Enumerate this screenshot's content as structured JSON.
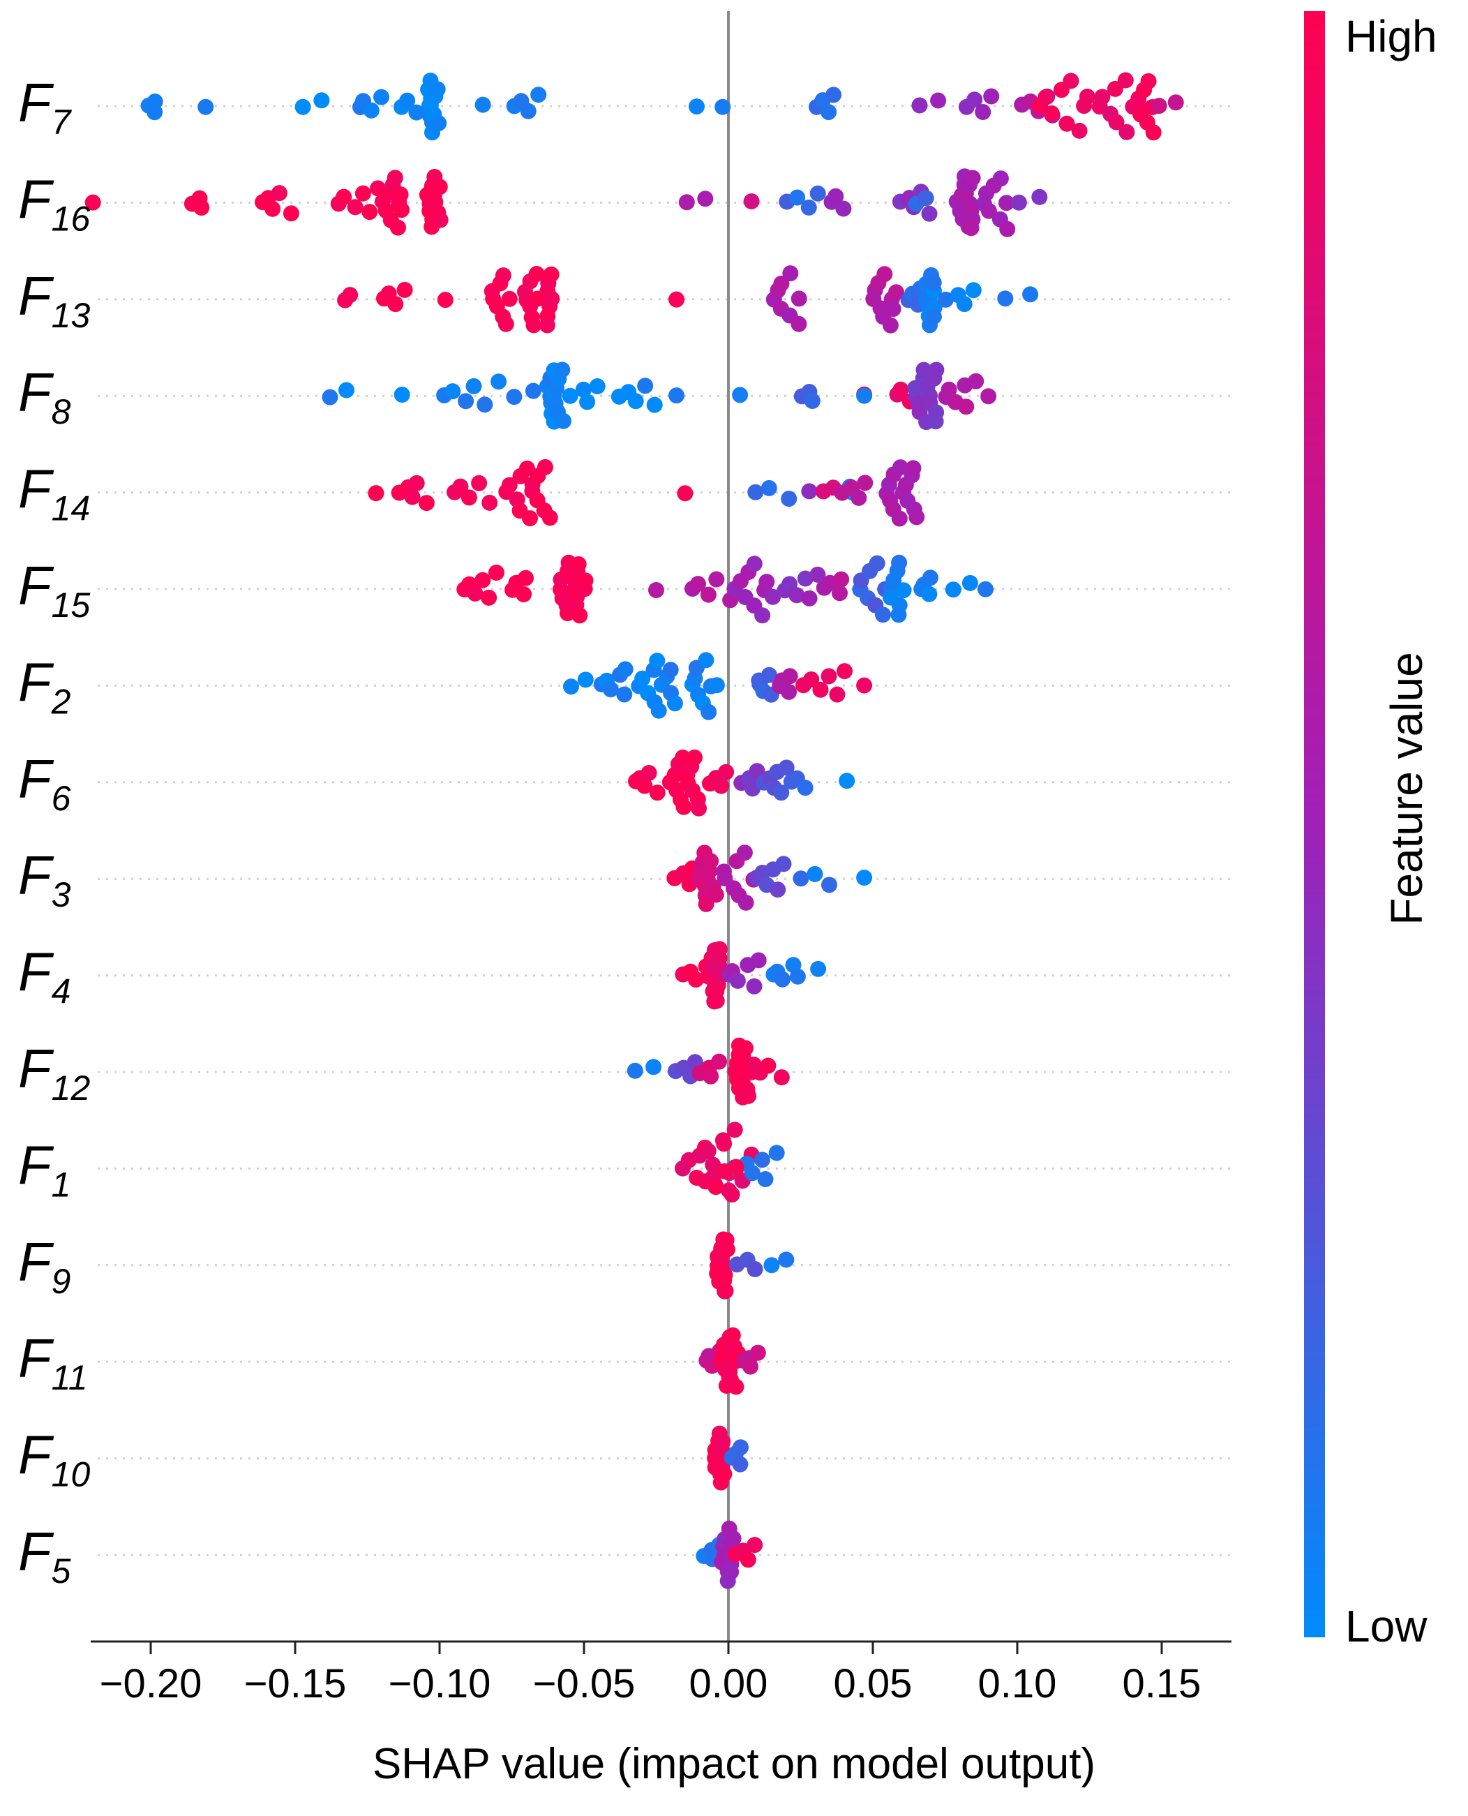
{
  "chart_data": {
    "type": "scatter",
    "subtype": "shap-beeswarm",
    "xlabel": "SHAP value (impact on model output)",
    "xlim": [
      -0.222,
      0.172
    ],
    "xticks": [
      -0.2,
      -0.15,
      -0.1,
      -0.05,
      0.0,
      0.05,
      0.1,
      0.15
    ],
    "xtick_labels": [
      "−0.20",
      "−0.15",
      "−0.10",
      "−0.05",
      "0.00",
      "0.05",
      "0.10",
      "0.15"
    ],
    "colorbar": {
      "title": "Feature value",
      "high_label": "High",
      "low_label": "Low",
      "high_color": "#ff0052",
      "mid_color": "#a020b8",
      "low_color": "#008bfb"
    },
    "features": [
      {
        "base": "F",
        "sub": "7",
        "clusters": [
          [
            -0.201,
            -0.198,
            0.04,
            0,
            3
          ],
          [
            -0.181,
            -0.181,
            0.05,
            0,
            1
          ],
          [
            -0.147,
            -0.141,
            0.03,
            0,
            2
          ],
          [
            -0.128,
            -0.121,
            0.05,
            0,
            4
          ],
          [
            -0.113,
            -0.108,
            0.05,
            0,
            3
          ],
          [
            -0.104,
            -0.101,
            0.03,
            0,
            12
          ],
          [
            -0.085,
            -0.085,
            0.05,
            0,
            1
          ],
          [
            -0.074,
            -0.066,
            0.05,
            0,
            4
          ],
          [
            -0.011,
            -0.011,
            0.05,
            0,
            1
          ],
          [
            -0.002,
            -0.002,
            0.05,
            0,
            1
          ],
          [
            0.031,
            0.036,
            0.1,
            0,
            4
          ],
          [
            0.067,
            0.072,
            0.45,
            0,
            2
          ],
          [
            0.083,
            0.09,
            0.45,
            0,
            4
          ],
          [
            0.102,
            0.112,
            0.62,
            0,
            5
          ],
          [
            0.108,
            0.125,
            0.96,
            0,
            9
          ],
          [
            0.128,
            0.14,
            0.88,
            0,
            8
          ],
          [
            0.142,
            0.147,
            0.98,
            0,
            8
          ],
          [
            0.15,
            0.154,
            0.75,
            0,
            2
          ]
        ]
      },
      {
        "base": "F",
        "sub": "16",
        "clusters": [
          [
            -0.22,
            -0.22,
            1.0,
            0,
            1
          ],
          [
            -0.185,
            -0.183,
            0.98,
            0,
            3
          ],
          [
            -0.162,
            -0.152,
            0.98,
            0,
            5
          ],
          [
            -0.135,
            -0.122,
            0.98,
            0,
            6
          ],
          [
            -0.119,
            -0.113,
            0.98,
            0,
            10
          ],
          [
            -0.104,
            -0.1,
            0.98,
            0,
            12
          ],
          [
            -0.015,
            -0.008,
            0.55,
            0,
            2
          ],
          [
            0.008,
            0.008,
            0.75,
            0,
            1
          ],
          [
            0.021,
            0.03,
            0.15,
            0,
            4
          ],
          [
            0.036,
            0.04,
            0.45,
            0,
            3
          ],
          [
            0.06,
            0.07,
            0.45,
            0,
            5
          ],
          [
            0.065,
            0.068,
            0.2,
            0,
            2
          ],
          [
            0.08,
            0.085,
            0.55,
            0,
            14
          ],
          [
            0.088,
            0.097,
            0.5,
            0,
            8
          ],
          [
            0.101,
            0.107,
            0.45,
            0,
            2
          ]
        ]
      },
      {
        "base": "F",
        "sub": "13",
        "clusters": [
          [
            -0.132,
            -0.13,
            0.98,
            0,
            2
          ],
          [
            -0.12,
            -0.112,
            0.98,
            0,
            4
          ],
          [
            -0.098,
            -0.098,
            0.98,
            0,
            1
          ],
          [
            -0.082,
            -0.075,
            0.98,
            0,
            8
          ],
          [
            -0.07,
            -0.066,
            0.98,
            0,
            8
          ],
          [
            -0.062,
            -0.062,
            0.98,
            0,
            8
          ],
          [
            -0.018,
            -0.018,
            0.98,
            0,
            1
          ],
          [
            0.015,
            0.025,
            0.55,
            0,
            8
          ],
          [
            0.05,
            0.058,
            0.6,
            0,
            10
          ],
          [
            0.062,
            0.066,
            0.15,
            0,
            4
          ],
          [
            0.068,
            0.072,
            0.05,
            0,
            12
          ],
          [
            0.076,
            0.085,
            0.05,
            0,
            4
          ],
          [
            0.095,
            0.104,
            0.05,
            0,
            2
          ]
        ]
      },
      {
        "base": "F",
        "sub": "8",
        "clusters": [
          [
            -0.138,
            -0.132,
            0.05,
            0,
            2
          ],
          [
            -0.113,
            -0.113,
            0.05,
            0,
            1
          ],
          [
            -0.099,
            -0.08,
            0.05,
            0,
            6
          ],
          [
            -0.075,
            -0.068,
            0.05,
            0,
            2
          ],
          [
            -0.062,
            -0.058,
            0.05,
            0,
            14
          ],
          [
            -0.054,
            -0.045,
            0.05,
            0,
            4
          ],
          [
            -0.038,
            -0.026,
            0.05,
            0,
            5
          ],
          [
            -0.018,
            -0.018,
            0.05,
            0,
            1
          ],
          [
            0.004,
            0.004,
            0.05,
            0,
            1
          ],
          [
            0.025,
            0.03,
            0.2,
            0,
            3
          ],
          [
            0.047,
            0.047,
            0.98,
            0,
            1
          ],
          [
            0.047,
            0.047,
            0.1,
            0,
            1
          ],
          [
            0.058,
            0.063,
            0.9,
            0,
            3
          ],
          [
            0.065,
            0.072,
            0.4,
            0,
            14
          ],
          [
            0.075,
            0.085,
            0.6,
            0,
            6
          ],
          [
            0.09,
            0.09,
            0.6,
            0,
            1
          ]
        ]
      },
      {
        "base": "F",
        "sub": "14",
        "clusters": [
          [
            -0.122,
            -0.122,
            0.98,
            0,
            1
          ],
          [
            -0.113,
            -0.105,
            0.98,
            0,
            5
          ],
          [
            -0.095,
            -0.083,
            0.98,
            0,
            5
          ],
          [
            -0.076,
            -0.062,
            0.98,
            0,
            14
          ],
          [
            -0.015,
            -0.015,
            0.98,
            0,
            1
          ],
          [
            0.01,
            0.02,
            0.15,
            0,
            3
          ],
          [
            0.028,
            0.028,
            0.4,
            0,
            1
          ],
          [
            0.032,
            0.036,
            0.8,
            0,
            2
          ],
          [
            0.043,
            0.043,
            0.05,
            0,
            2
          ],
          [
            0.04,
            0.047,
            0.65,
            0,
            4
          ],
          [
            0.055,
            0.065,
            0.55,
            0,
            14
          ]
        ]
      },
      {
        "base": "F",
        "sub": "15",
        "clusters": [
          [
            -0.092,
            -0.08,
            0.98,
            0,
            6
          ],
          [
            -0.075,
            -0.07,
            0.98,
            0,
            4
          ],
          [
            -0.058,
            -0.05,
            0.98,
            0,
            16
          ],
          [
            -0.025,
            -0.025,
            0.6,
            0,
            1
          ],
          [
            -0.013,
            0.0,
            0.6,
            0,
            5
          ],
          [
            0.003,
            0.015,
            0.5,
            0,
            10
          ],
          [
            0.02,
            0.03,
            0.45,
            0,
            6
          ],
          [
            0.034,
            0.04,
            0.6,
            0,
            4
          ],
          [
            0.045,
            0.055,
            0.2,
            0,
            8
          ],
          [
            0.056,
            0.06,
            0.05,
            0,
            8
          ],
          [
            0.067,
            0.07,
            0.05,
            0,
            4
          ],
          [
            0.077,
            0.083,
            0.05,
            0,
            2
          ],
          [
            0.089,
            0.089,
            0.05,
            0,
            1
          ]
        ]
      },
      {
        "base": "F",
        "sub": "2",
        "clusters": [
          [
            -0.055,
            -0.05,
            0.05,
            0,
            2
          ],
          [
            -0.043,
            -0.035,
            0.05,
            0,
            6
          ],
          [
            -0.03,
            -0.018,
            0.05,
            0,
            12
          ],
          [
            -0.013,
            -0.007,
            0.05,
            0,
            8
          ],
          [
            -0.004,
            -0.004,
            0.05,
            0,
            1
          ],
          [
            0.01,
            0.015,
            0.2,
            0,
            5
          ],
          [
            0.018,
            0.022,
            0.6,
            0,
            4
          ],
          [
            0.025,
            0.04,
            0.95,
            0,
            6
          ],
          [
            0.047,
            0.047,
            0.95,
            0,
            1
          ]
        ]
      },
      {
        "base": "F",
        "sub": "6",
        "clusters": [
          [
            -0.033,
            -0.025,
            0.98,
            0,
            5
          ],
          [
            -0.02,
            -0.01,
            0.98,
            0,
            14
          ],
          [
            -0.006,
            0.0,
            0.95,
            0,
            4
          ],
          [
            0.005,
            0.01,
            0.4,
            0,
            4
          ],
          [
            0.012,
            0.02,
            0.25,
            0,
            6
          ],
          [
            0.022,
            0.026,
            0.15,
            0,
            3
          ],
          [
            0.041,
            0.041,
            0.05,
            0,
            1
          ]
        ]
      },
      {
        "base": "F",
        "sub": "3",
        "clusters": [
          [
            -0.018,
            -0.012,
            0.98,
            0,
            4
          ],
          [
            -0.01,
            -0.005,
            0.8,
            0,
            12
          ],
          [
            -0.002,
            0.008,
            0.6,
            0,
            8
          ],
          [
            0.01,
            0.02,
            0.3,
            0,
            6
          ],
          [
            0.025,
            0.035,
            0.1,
            0,
            3
          ],
          [
            0.047,
            0.047,
            0.05,
            0,
            1
          ]
        ]
      },
      {
        "base": "F",
        "sub": "4",
        "clusters": [
          [
            -0.015,
            -0.008,
            0.98,
            0,
            4
          ],
          [
            -0.006,
            -0.003,
            0.9,
            0,
            16
          ],
          [
            0.0,
            0.01,
            0.5,
            0,
            6
          ],
          [
            0.015,
            0.022,
            0.1,
            0,
            4
          ],
          [
            0.025,
            0.031,
            0.05,
            0,
            2
          ]
        ]
      },
      {
        "base": "F",
        "sub": "12",
        "clusters": [
          [
            -0.032,
            -0.025,
            0.05,
            0,
            2
          ],
          [
            -0.018,
            -0.012,
            0.3,
            0,
            4
          ],
          [
            -0.01,
            -0.003,
            0.8,
            0,
            4
          ],
          [
            0.002,
            0.008,
            0.98,
            0,
            16
          ],
          [
            0.01,
            0.018,
            0.98,
            0,
            3
          ]
        ]
      },
      {
        "base": "F",
        "sub": "1",
        "clusters": [
          [
            -0.01,
            0.008,
            0.9,
            -1,
            8
          ],
          [
            -0.016,
            0.003,
            0.9,
            0,
            8
          ],
          [
            0.003,
            0.016,
            0.1,
            0,
            6
          ],
          [
            -0.008,
            0.003,
            0.95,
            1,
            6
          ]
        ]
      },
      {
        "base": "F",
        "sub": "9",
        "clusters": [
          [
            -0.004,
            0.0,
            0.98,
            0,
            14
          ],
          [
            0.003,
            0.01,
            0.25,
            0,
            3
          ],
          [
            0.015,
            0.02,
            0.05,
            0,
            2
          ]
        ]
      },
      {
        "base": "F",
        "sub": "11",
        "clusters": [
          [
            -0.008,
            -0.004,
            0.7,
            0,
            4
          ],
          [
            -0.002,
            0.003,
            0.98,
            0,
            16
          ],
          [
            0.005,
            0.01,
            0.7,
            0,
            4
          ]
        ]
      },
      {
        "base": "F",
        "sub": "10",
        "clusters": [
          [
            -0.005,
            -0.001,
            0.95,
            0,
            12
          ],
          [
            0.002,
            0.005,
            0.2,
            0,
            4
          ]
        ]
      },
      {
        "base": "F",
        "sub": "5",
        "clusters": [
          [
            -0.008,
            -0.003,
            0.1,
            0,
            4
          ],
          [
            -0.002,
            0.001,
            0.5,
            0,
            12
          ],
          [
            0.003,
            0.01,
            0.95,
            0,
            4
          ]
        ]
      }
    ]
  }
}
